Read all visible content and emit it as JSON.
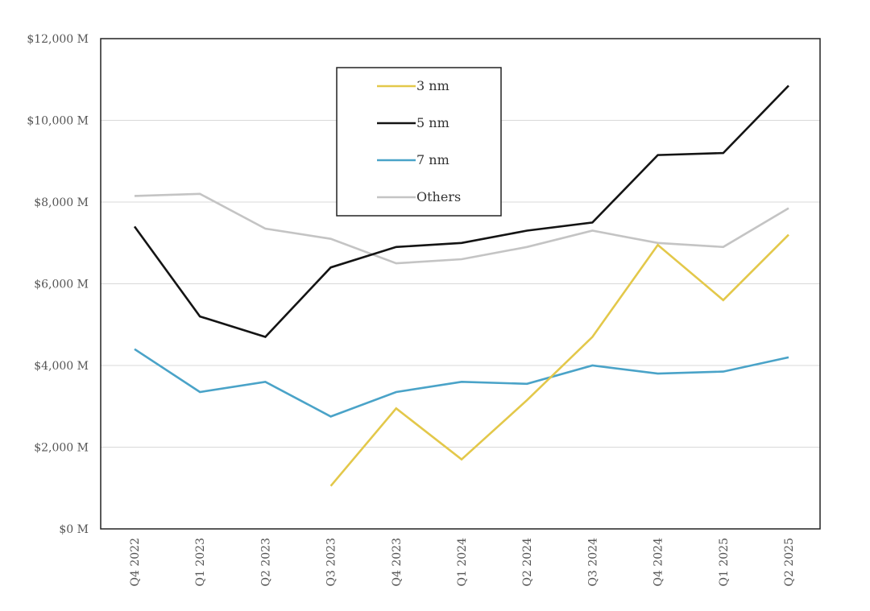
{
  "chart_data": {
    "type": "line",
    "categories": [
      "Q4 2022",
      "Q1 2023",
      "Q2 2023",
      "Q3 2023",
      "Q4 2023",
      "Q1 2024",
      "Q2 2024",
      "Q3 2024",
      "Q4 2024",
      "Q1 2025",
      "Q2 2025"
    ],
    "ylim": [
      0,
      12000
    ],
    "yticks": [
      0,
      2000,
      4000,
      6000,
      8000,
      10000,
      12000
    ],
    "ytick_labels": [
      "$0 M",
      "$2,000 M",
      "$4,000 M",
      "$6,000 M",
      "$8,000 M",
      "$10,000 M",
      "$12,000 M"
    ],
    "grid": true,
    "legend_position": "top-center",
    "series": [
      {
        "name": "3 nm",
        "color": "#e3c84a",
        "values": [
          null,
          null,
          null,
          1050,
          2950,
          1700,
          3150,
          4700,
          6950,
          5600,
          7200
        ]
      },
      {
        "name": "5 nm",
        "color": "#141414",
        "values": [
          7400,
          5200,
          4700,
          6400,
          6900,
          7000,
          7300,
          7500,
          9150,
          9200,
          10850
        ]
      },
      {
        "name": "7 nm",
        "color": "#4aa3c8",
        "values": [
          4400,
          3350,
          3600,
          2750,
          3350,
          3600,
          3550,
          4000,
          3800,
          3850,
          4200
        ]
      },
      {
        "name": "Others",
        "color": "#c4c4c4",
        "values": [
          8150,
          8200,
          7350,
          7100,
          6500,
          6600,
          6900,
          7300,
          7000,
          6900,
          7850
        ]
      }
    ]
  }
}
